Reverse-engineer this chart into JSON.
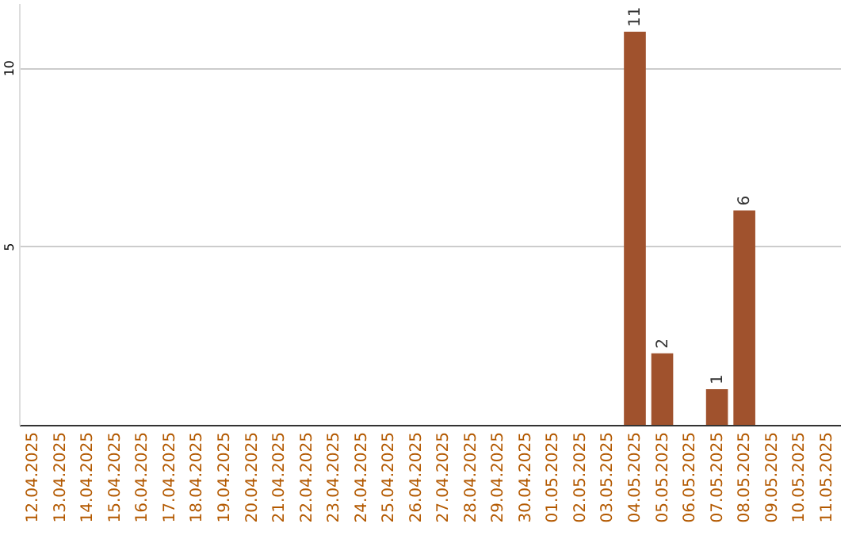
{
  "chart_data": {
    "type": "bar",
    "categories": [
      "12.04.2025",
      "13.04.2025",
      "14.04.2025",
      "15.04.2025",
      "16.04.2025",
      "17.04.2025",
      "18.04.2025",
      "19.04.2025",
      "20.04.2025",
      "21.04.2025",
      "22.04.2025",
      "23.04.2025",
      "24.04.2025",
      "25.04.2025",
      "26.04.2025",
      "27.04.2025",
      "28.04.2025",
      "29.04.2025",
      "30.04.2025",
      "01.05.2025",
      "02.05.2025",
      "03.05.2025",
      "04.05.2025",
      "05.05.2025",
      "06.05.2025",
      "07.05.2025",
      "08.05.2025",
      "09.05.2025",
      "10.05.2025",
      "11.05.2025"
    ],
    "values": [
      0,
      0,
      0,
      0,
      0,
      0,
      0,
      0,
      0,
      0,
      0,
      0,
      0,
      0,
      0,
      0,
      0,
      0,
      0,
      0,
      0,
      0,
      11,
      2,
      0,
      1,
      6,
      0,
      0,
      0
    ],
    "value_labels": [
      null,
      null,
      null,
      null,
      null,
      null,
      null,
      null,
      null,
      null,
      null,
      null,
      null,
      null,
      null,
      null,
      null,
      null,
      null,
      null,
      null,
      null,
      "11",
      "2",
      null,
      "1",
      "6",
      null,
      null,
      null
    ],
    "color": "#a0522d",
    "ylim": [
      0,
      11.8
    ],
    "yticks": [
      5,
      10
    ],
    "grid": "y"
  }
}
